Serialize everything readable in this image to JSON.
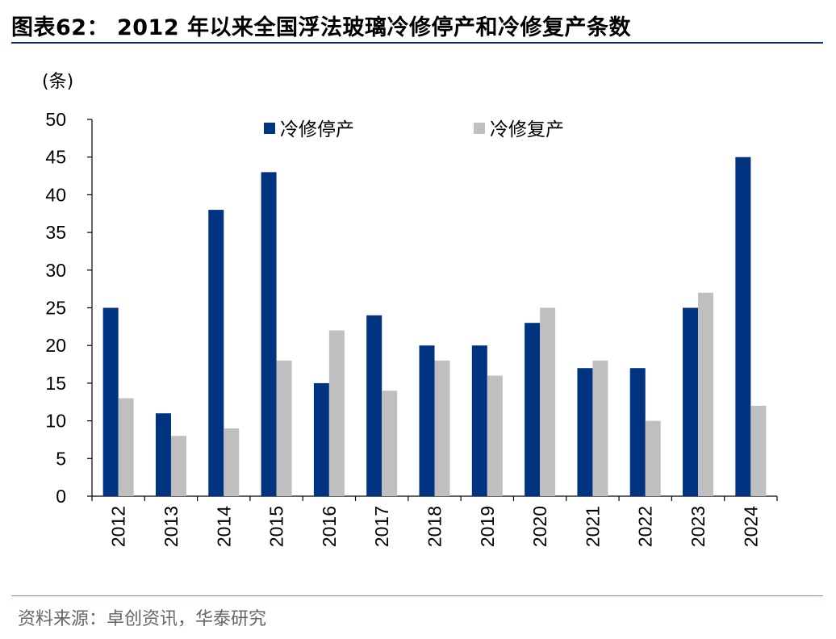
{
  "header": {
    "title": "图表62：  2012 年以来全国浮法玻璃冷修停产和冷修复产条数"
  },
  "footer": {
    "source": "资料来源：卓创资讯，华泰研究"
  },
  "colors": {
    "stop": "#003380",
    "resume": "#bfbfbf",
    "rule": "#0b2d6b"
  },
  "chart_data": {
    "type": "bar",
    "y_unit_label": "(条)",
    "categories": [
      "2012",
      "2013",
      "2014",
      "2015",
      "2016",
      "2017",
      "2018",
      "2019",
      "2020",
      "2021",
      "2022",
      "2023",
      "2024"
    ],
    "series": [
      {
        "name": "冷修停产",
        "values": [
          25,
          11,
          38,
          43,
          15,
          24,
          20,
          20,
          23,
          17,
          17,
          25,
          45
        ]
      },
      {
        "name": "冷修复产",
        "values": [
          13,
          8,
          9,
          18,
          22,
          14,
          18,
          16,
          25,
          18,
          10,
          27,
          12
        ]
      }
    ],
    "ylim": [
      0,
      50
    ],
    "yticks": [
      0,
      5,
      10,
      15,
      20,
      25,
      30,
      35,
      40,
      45,
      50
    ],
    "legend_position": "top",
    "grid": false
  }
}
